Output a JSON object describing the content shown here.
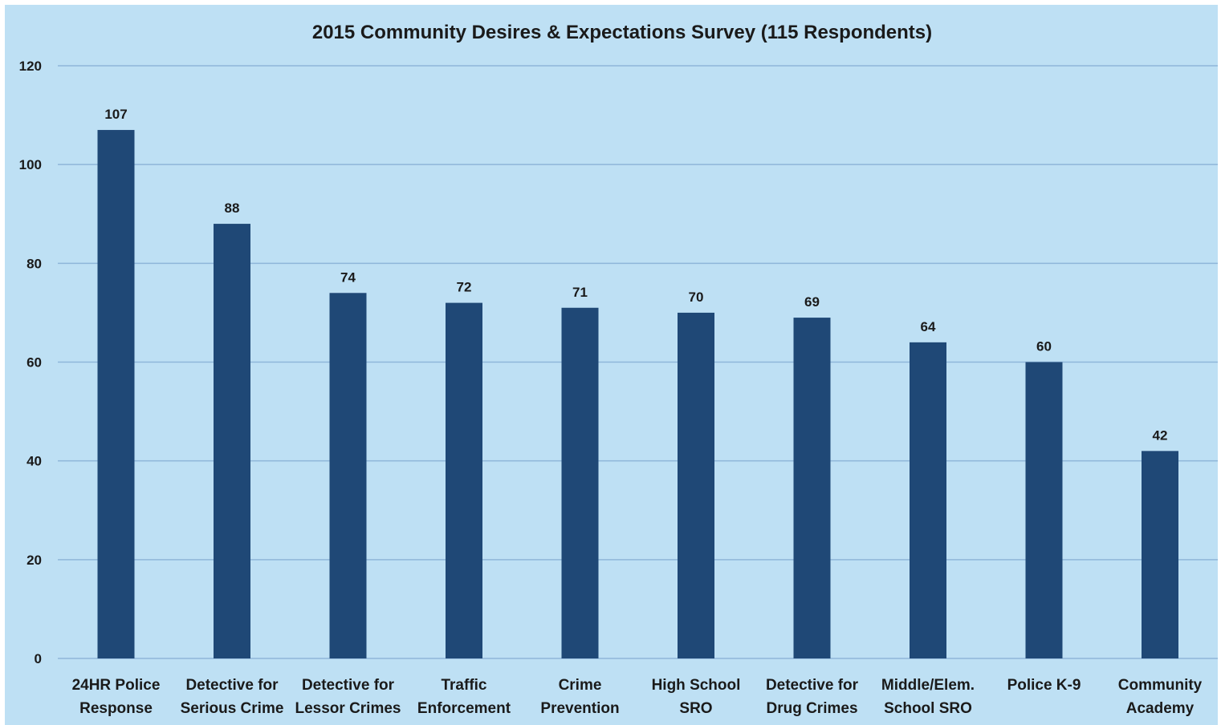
{
  "chart_data": {
    "type": "bar",
    "title": "2015 Community Desires & Expectations Survey (115 Respondents)",
    "xlabel": "",
    "ylabel": "",
    "categories": [
      [
        "24HR Police",
        "Response"
      ],
      [
        "Detective for",
        "Serious Crime"
      ],
      [
        "Detective for",
        "Lessor Crimes"
      ],
      [
        "Traffic",
        "Enforcement"
      ],
      [
        "Crime",
        "Prevention"
      ],
      [
        "High School",
        "SRO"
      ],
      [
        "Detective for",
        "Drug Crimes"
      ],
      [
        "Middle/Elem.",
        "School SRO"
      ],
      [
        "Police K-9"
      ],
      [
        "Community",
        "Academy"
      ]
    ],
    "values": [
      107,
      88,
      74,
      72,
      71,
      70,
      69,
      64,
      60,
      42
    ],
    "ylim": [
      0,
      120
    ],
    "yticks": [
      0,
      20,
      40,
      60,
      80,
      100,
      120
    ],
    "grid": true,
    "legend": "none",
    "colors": {
      "background": "#bee0f4",
      "bar": "#1f4876",
      "grid": "#8fb6d9"
    }
  }
}
